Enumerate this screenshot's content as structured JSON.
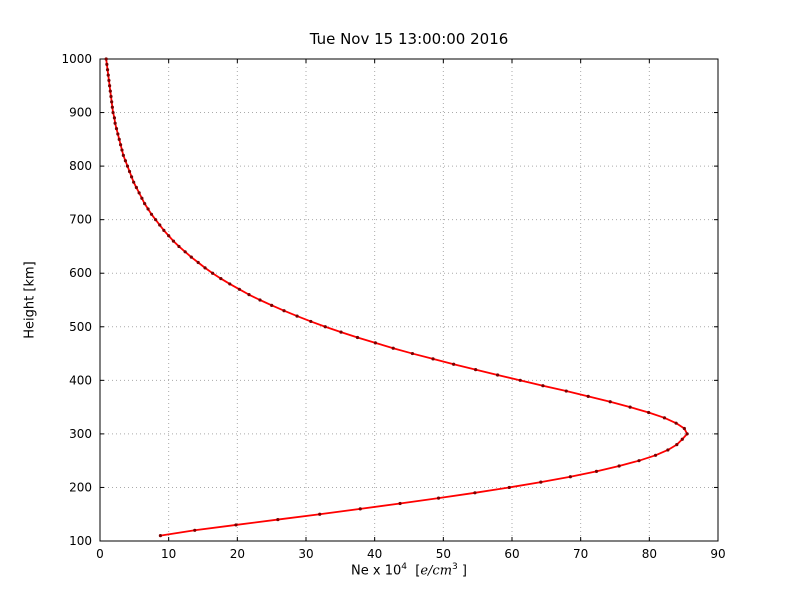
{
  "figure": {
    "title": "Tue Nov 15 13:00:00 2016",
    "ylabel": "Height [km]",
    "xlabel_parts": {
      "prefix": "Ne x 10",
      "exponent": "4",
      "open_bracket": "  [",
      "units_italic": "e/cm",
      "units_exponent": "3",
      "close_bracket": " ]"
    }
  },
  "chart_data": {
    "type": "line",
    "title": "Tue Nov 15 13:00:00 2016",
    "xlabel": "Ne x 10^4 [e/cm^3]",
    "ylabel": "Height [km]",
    "xlim": [
      0,
      90
    ],
    "ylim": [
      100,
      1000
    ],
    "x_ticks": [
      0,
      10,
      20,
      30,
      40,
      50,
      60,
      70,
      80,
      90
    ],
    "y_ticks": [
      100,
      200,
      300,
      400,
      500,
      600,
      700,
      800,
      900,
      1000
    ],
    "grid": true,
    "grid_style": "dotted",
    "grid_color": "#aaaaaa",
    "line_color": "#ff0000",
    "marker_color": "#7a0000",
    "axis_color": "#000000",
    "legend": "none",
    "series": [
      {
        "name": "electron-density-profile",
        "orientation": "x=Ne, y=height",
        "heights_km": [
          110,
          120,
          130,
          140,
          150,
          160,
          170,
          180,
          190,
          200,
          210,
          220,
          230,
          240,
          250,
          260,
          270,
          280,
          290,
          300,
          310,
          320,
          330,
          340,
          350,
          360,
          370,
          380,
          390,
          400,
          410,
          420,
          430,
          440,
          450,
          460,
          470,
          480,
          490,
          500,
          510,
          520,
          530,
          540,
          550,
          560,
          570,
          580,
          590,
          600,
          610,
          620,
          630,
          640,
          650,
          660,
          670,
          680,
          690,
          700,
          710,
          720,
          730,
          740,
          750,
          760,
          770,
          780,
          790,
          800,
          810,
          820,
          830,
          840,
          850,
          860,
          870,
          880,
          890,
          900,
          910,
          920,
          930,
          940,
          950,
          960,
          970,
          980,
          990,
          1000
        ],
        "ne_values": [
          8.8,
          13.8,
          19.8,
          25.9,
          32.0,
          37.9,
          43.7,
          49.3,
          54.6,
          59.6,
          64.2,
          68.5,
          72.3,
          75.6,
          78.5,
          80.9,
          82.7,
          84.0,
          84.8,
          85.5,
          85.1,
          83.9,
          82.2,
          79.9,
          77.2,
          74.3,
          71.1,
          67.9,
          64.5,
          61.2,
          57.9,
          54.7,
          51.5,
          48.5,
          45.5,
          42.7,
          40.1,
          37.5,
          35.1,
          32.8,
          30.7,
          28.7,
          26.8,
          25.0,
          23.3,
          21.7,
          20.3,
          18.9,
          17.6,
          16.4,
          15.3,
          14.3,
          13.3,
          12.4,
          11.5,
          10.7,
          10.0,
          9.3,
          8.7,
          8.1,
          7.5,
          7.0,
          6.5,
          6.1,
          5.7,
          5.3,
          4.9,
          4.6,
          4.3,
          4.0,
          3.7,
          3.4,
          3.2,
          3.0,
          2.8,
          2.6,
          2.4,
          2.2,
          2.1,
          1.9,
          1.8,
          1.7,
          1.6,
          1.5,
          1.4,
          1.3,
          1.2,
          1.1,
          1.0,
          0.9
        ]
      }
    ]
  }
}
